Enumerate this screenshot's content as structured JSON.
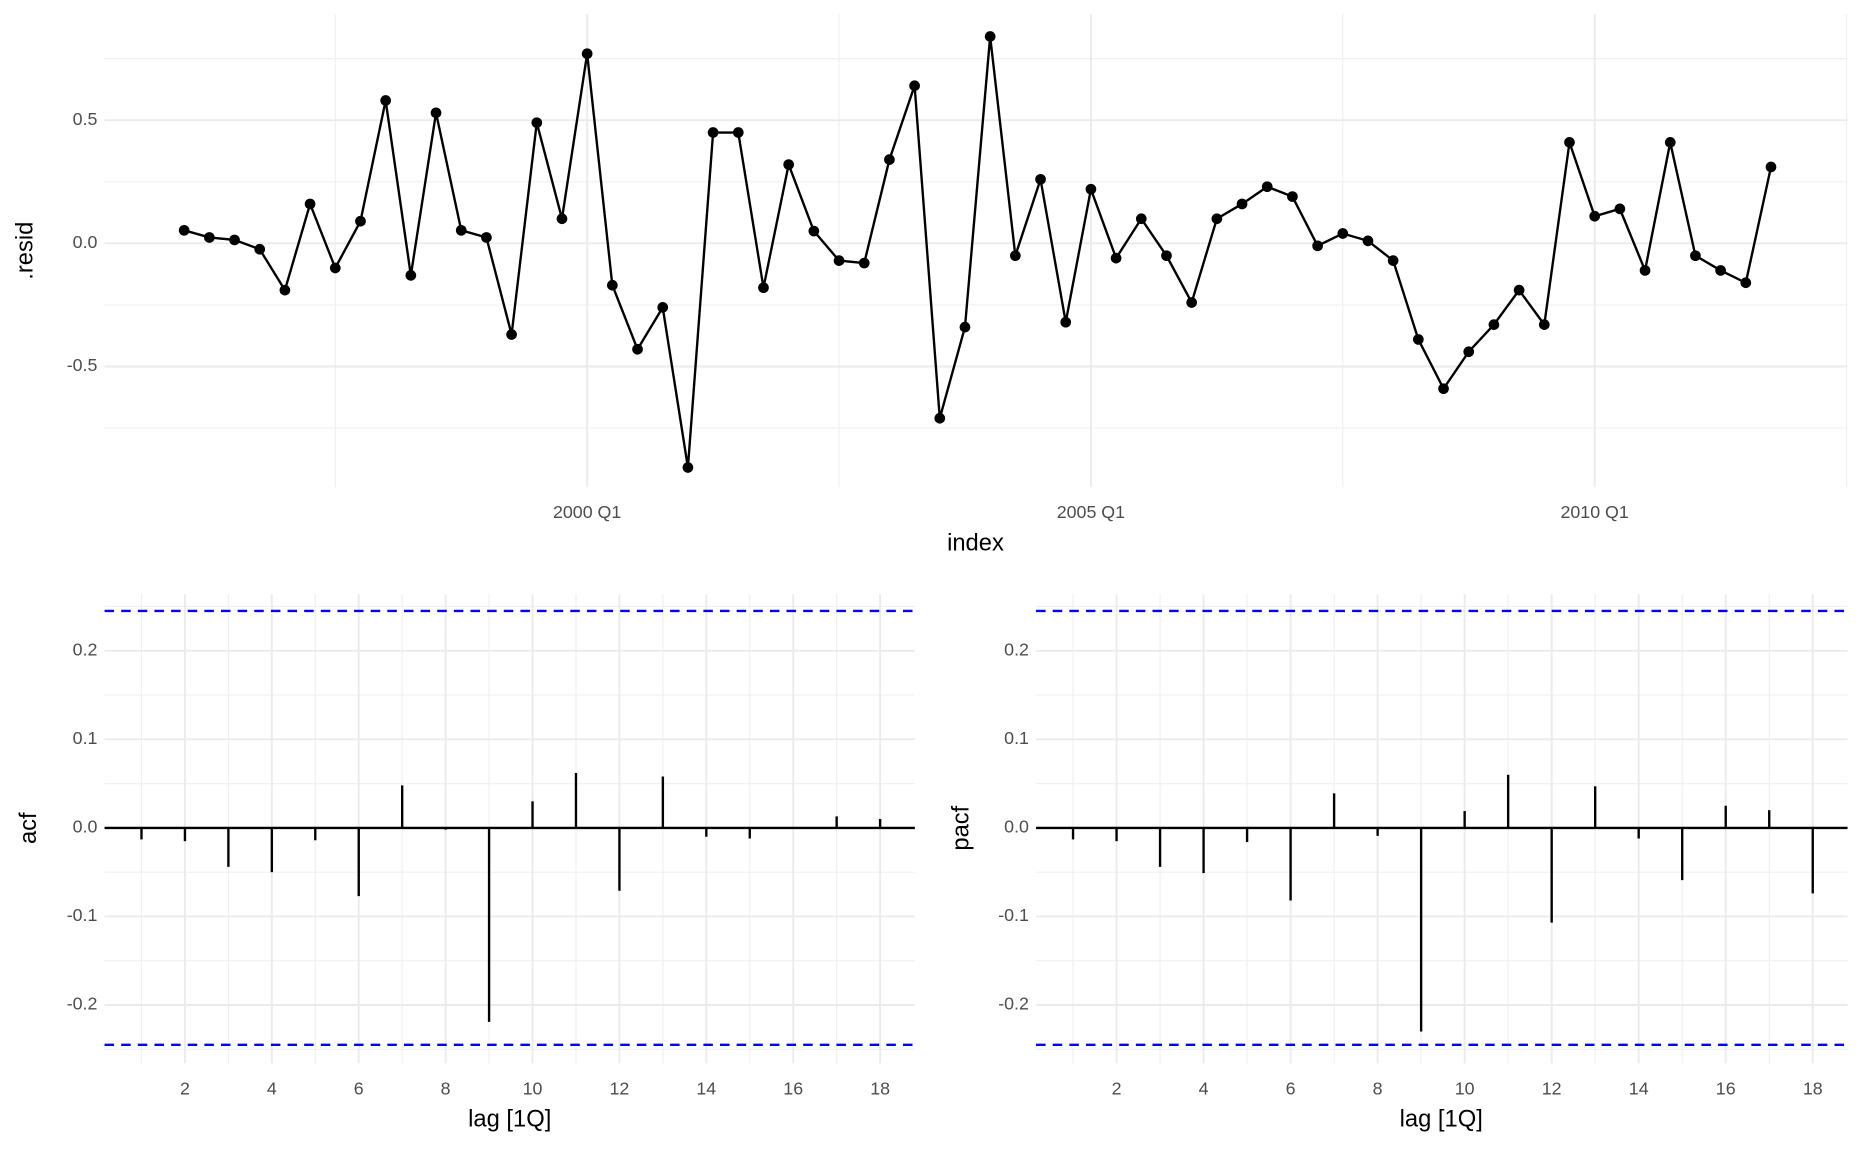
{
  "chart_data": [
    {
      "type": "line",
      "x_label": "index",
      "y_label": ".resid",
      "color": "#000000",
      "grid": true,
      "x": [
        "1996 Q1",
        "1996 Q2",
        "1996 Q3",
        "1996 Q4",
        "1997 Q1",
        "1997 Q2",
        "1997 Q3",
        "1997 Q4",
        "1998 Q1",
        "1998 Q2",
        "1998 Q3",
        "1998 Q4",
        "1999 Q1",
        "1999 Q2",
        "1999 Q3",
        "1999 Q4",
        "2000 Q1",
        "2000 Q2",
        "2000 Q3",
        "2000 Q4",
        "2001 Q1",
        "2001 Q2",
        "2001 Q3",
        "2001 Q4",
        "2002 Q1",
        "2002 Q2",
        "2002 Q3",
        "2002 Q4",
        "2003 Q1",
        "2003 Q2",
        "2003 Q3",
        "2003 Q4",
        "2004 Q1",
        "2004 Q2",
        "2004 Q3",
        "2004 Q4",
        "2005 Q1",
        "2005 Q2",
        "2005 Q3",
        "2005 Q4",
        "2006 Q1",
        "2006 Q2",
        "2006 Q3",
        "2006 Q4",
        "2007 Q1",
        "2007 Q2",
        "2007 Q3",
        "2007 Q4",
        "2008 Q1",
        "2008 Q2",
        "2008 Q3",
        "2008 Q4",
        "2009 Q1",
        "2009 Q2",
        "2009 Q3",
        "2009 Q4",
        "2010 Q1",
        "2010 Q2",
        "2010 Q3",
        "2010 Q4",
        "2011 Q1",
        "2011 Q2",
        "2011 Q3",
        "2011 Q4"
      ],
      "values": [
        0.053,
        0.024,
        0.014,
        -0.024,
        -0.19,
        0.16,
        -0.1,
        0.09,
        0.58,
        -0.13,
        0.53,
        0.053,
        0.024,
        -0.37,
        0.49,
        0.1,
        0.77,
        -0.17,
        -0.43,
        -0.26,
        -0.91,
        0.45,
        0.45,
        -0.18,
        0.32,
        0.05,
        -0.07,
        -0.08,
        0.34,
        0.64,
        -0.71,
        -0.34,
        0.84,
        -0.05,
        0.26,
        -0.32,
        0.22,
        -0.06,
        0.1,
        -0.05,
        -0.24,
        0.1,
        0.16,
        0.23,
        0.19,
        -0.01,
        0.04,
        0.01,
        -0.07,
        -0.39,
        -0.59,
        -0.44,
        -0.33,
        -0.19,
        -0.33,
        0.41,
        0.11,
        0.14,
        -0.11,
        0.41,
        -0.05,
        -0.11,
        -0.16,
        0.31
      ],
      "xticks": [
        "2000 Q1",
        "2005 Q1",
        "2010 Q1"
      ],
      "ylim": [
        -0.99,
        0.93
      ],
      "yticks": [
        -0.5,
        {
          "value": 0,
          "label": "0.0"
        },
        0.5
      ]
    },
    {
      "type": "bar",
      "x_label": "lag [1Q]",
      "y_label": "acf",
      "color": "#000000",
      "bound_color": "#0000ff",
      "grid": true,
      "x": [
        1,
        2,
        3,
        4,
        5,
        6,
        7,
        8,
        9,
        10,
        11,
        12,
        13,
        14,
        15,
        16,
        17,
        18
      ],
      "values": [
        -0.013,
        -0.015,
        -0.044,
        -0.05,
        -0.014,
        -0.077,
        0.048,
        -0.002,
        -0.219,
        0.03,
        0.062,
        -0.071,
        0.058,
        -0.01,
        -0.012,
        -0.001,
        0.013,
        0.01
      ],
      "bounds": [
        0.245,
        -0.245
      ],
      "xlim": [
        0.15,
        18.8
      ],
      "xticks": [
        2,
        4,
        6,
        8,
        10,
        12,
        14,
        16,
        18
      ],
      "ylim": [
        -0.266,
        0.264
      ],
      "yticks": [
        -0.2,
        -0.1,
        {
          "value": 0,
          "label": "0.0"
        },
        0.1,
        0.2
      ]
    },
    {
      "type": "bar",
      "x_label": "lag [1Q]",
      "y_label": "pacf",
      "color": "#000000",
      "bound_color": "#0000ff",
      "grid": true,
      "x": [
        1,
        2,
        3,
        4,
        5,
        6,
        7,
        8,
        9,
        10,
        11,
        12,
        13,
        14,
        15,
        16,
        17,
        18
      ],
      "values": [
        -0.013,
        -0.015,
        -0.044,
        -0.051,
        -0.016,
        -0.082,
        0.039,
        -0.009,
        -0.23,
        0.019,
        0.06,
        -0.107,
        0.047,
        -0.012,
        -0.059,
        0.025,
        0.02,
        -0.074
      ],
      "bounds": [
        0.245,
        -0.245
      ],
      "xlim": [
        0.15,
        18.8
      ],
      "xticks": [
        2,
        4,
        6,
        8,
        10,
        12,
        14,
        16,
        18
      ],
      "ylim": [
        -0.266,
        0.264
      ],
      "yticks": [
        -0.2,
        -0.1,
        {
          "value": 0,
          "label": "0.0"
        },
        0.1,
        0.2
      ]
    }
  ]
}
